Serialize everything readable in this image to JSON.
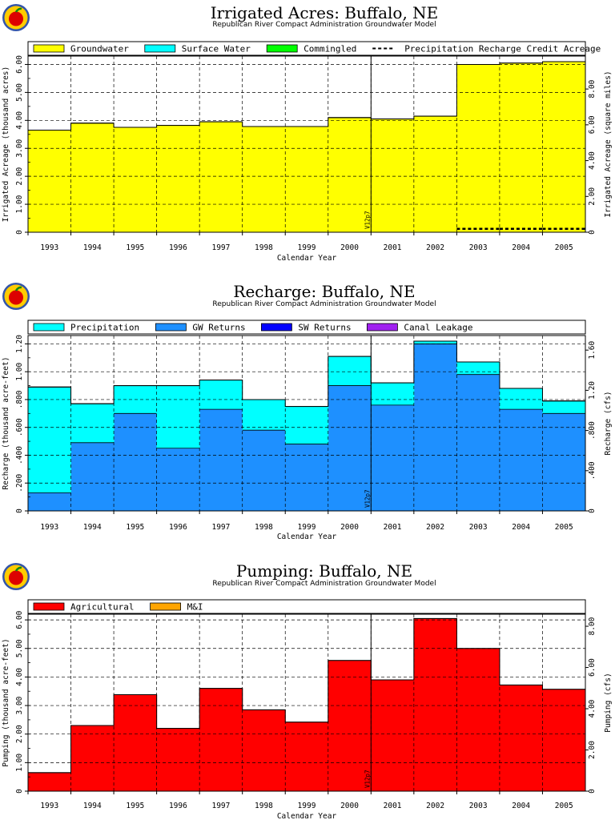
{
  "chart_data": [
    {
      "type": "area",
      "title": "Irrigated Acres: Buffalo, NE",
      "subtitle": "Republican River Compact Administration Groundwater Model",
      "xlabel": "Calendar Year",
      "ylabel": "Irrigated Acreage (thousand acres)",
      "y2label": "Irrigated Acreage (square miles)",
      "categories": [
        "1993",
        "1994",
        "1995",
        "1996",
        "1997",
        "1998",
        "1999",
        "2000",
        "2001",
        "2002",
        "2003",
        "2004",
        "2005"
      ],
      "ylim": [
        0,
        6.3
      ],
      "yticks": [
        "0",
        "1.00",
        "2.00",
        "3.00",
        "4.00",
        "5.00",
        "6.00"
      ],
      "y2ticks": [
        "0",
        "2.00",
        "4.00",
        "6.00",
        "8.00"
      ],
      "y2factor": 0.0015625,
      "grid": true,
      "legend_position": "top",
      "version_label": "V12p7",
      "series": [
        {
          "name": "Groundwater",
          "color": "#ffff00",
          "values": [
            3.65,
            3.9,
            3.75,
            3.82,
            3.95,
            3.78,
            3.78,
            4.1,
            4.05,
            4.15,
            6.0,
            6.05,
            6.1
          ]
        },
        {
          "name": "Surface Water",
          "color": "#00ffff",
          "values": [
            0,
            0,
            0,
            0,
            0,
            0,
            0,
            0,
            0,
            0,
            0,
            0,
            0
          ]
        },
        {
          "name": "Commingled",
          "color": "#00ff00",
          "values": [
            0,
            0,
            0,
            0,
            0,
            0,
            0,
            0,
            0,
            0,
            0,
            0,
            0
          ]
        }
      ],
      "line_series": [
        {
          "name": "Precipitation Recharge Credit Acreage",
          "style": "dashed",
          "values": [
            0,
            0,
            0,
            0,
            0,
            0,
            0,
            0,
            0,
            0,
            0.12,
            0.12,
            0.12
          ]
        }
      ]
    },
    {
      "type": "area",
      "title": "Recharge: Buffalo, NE",
      "subtitle": "Republican River Compact Administration Groundwater Model",
      "xlabel": "Calendar Year",
      "ylabel": "Recharge (thousand acre-feet)",
      "y2label": "Recharge (cfs)",
      "categories": [
        "1993",
        "1994",
        "1995",
        "1996",
        "1997",
        "1998",
        "1999",
        "2000",
        "2001",
        "2002",
        "2003",
        "2004",
        "2005"
      ],
      "ylim": [
        0,
        1.26
      ],
      "yticks": [
        "0",
        ".200",
        ".400",
        ".600",
        ".800",
        "1.00",
        "1.20"
      ],
      "y2ticks": [
        "0",
        ".400",
        ".800",
        "1.20",
        "1.60"
      ],
      "y2factor": 0.7244,
      "grid": true,
      "legend_position": "top",
      "version_label": "V12p7",
      "series": [
        {
          "name": "GW Returns",
          "color": "#1e90ff",
          "values": [
            0.13,
            0.49,
            0.7,
            0.45,
            0.73,
            0.58,
            0.48,
            0.9,
            0.76,
            1.2,
            0.98,
            0.73,
            0.7
          ]
        },
        {
          "name": "Precipitation",
          "color": "#00ffff",
          "values": [
            0.76,
            0.28,
            0.2,
            0.45,
            0.21,
            0.22,
            0.27,
            0.21,
            0.16,
            0.02,
            0.09,
            0.15,
            0.09
          ]
        },
        {
          "name": "SW Returns",
          "color": "#0000ff",
          "values": [
            0,
            0,
            0,
            0,
            0,
            0,
            0,
            0,
            0,
            0,
            0,
            0,
            0
          ]
        },
        {
          "name": "Canal Leakage",
          "color": "#a020f0",
          "values": [
            0,
            0,
            0,
            0,
            0,
            0,
            0,
            0,
            0,
            0,
            0,
            0,
            0
          ]
        }
      ],
      "legend_order": [
        "Precipitation",
        "GW Returns",
        "SW Returns",
        "Canal Leakage"
      ]
    },
    {
      "type": "area",
      "title": "Pumping: Buffalo, NE",
      "subtitle": "Republican River Compact Administration Groundwater Model",
      "xlabel": "Calendar Year",
      "ylabel": "Pumping (thousand acre-feet)",
      "y2label": "Pumping (cfs)",
      "categories": [
        "1993",
        "1994",
        "1995",
        "1996",
        "1997",
        "1998",
        "1999",
        "2000",
        "2001",
        "2002",
        "2003",
        "2004",
        "2005"
      ],
      "ylim": [
        0,
        6.2
      ],
      "yticks": [
        "0",
        "1.00",
        "2.00",
        "3.00",
        "4.00",
        "5.00",
        "6.00"
      ],
      "y2ticks": [
        "0",
        "2.00",
        "4.00",
        "6.00",
        "8.00"
      ],
      "y2factor": 0.7244,
      "grid": true,
      "legend_position": "top",
      "version_label": "V12p7",
      "series": [
        {
          "name": "Agricultural",
          "color": "#ff0000",
          "values": [
            0.65,
            2.3,
            3.38,
            2.2,
            3.6,
            2.85,
            2.42,
            4.58,
            3.9,
            6.05,
            5.0,
            3.72,
            3.57
          ]
        },
        {
          "name": "M&I",
          "color": "#ffa500",
          "values": [
            0,
            0,
            0,
            0,
            0,
            0,
            0,
            0,
            0,
            0,
            0,
            0,
            0
          ]
        }
      ]
    }
  ]
}
